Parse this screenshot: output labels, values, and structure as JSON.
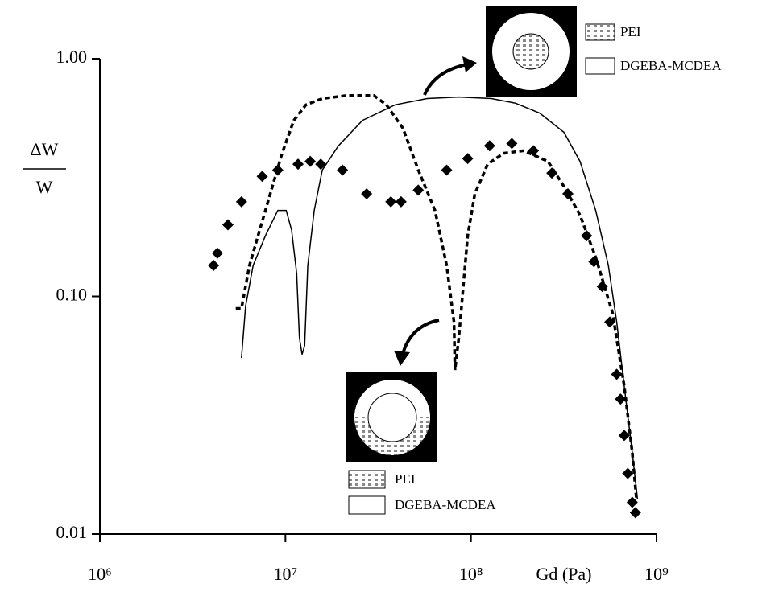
{
  "chart_data": {
    "type": "line",
    "xscale": "log",
    "yscale": "log",
    "xlim": [
      1000000,
      1000000000
    ],
    "ylim": [
      0.01,
      1
    ],
    "xticks": [
      {
        "value": 1000000,
        "label": "10⁶"
      },
      {
        "value": 10000000,
        "label": "10⁷"
      },
      {
        "value": 100000000,
        "label": "10⁸"
      },
      {
        "value": 1000000000,
        "label": "10⁹"
      }
    ],
    "yticks": [
      {
        "value": 1,
        "label": "1.00"
      },
      {
        "value": 0.1,
        "label": "0.10"
      },
      {
        "value": 0.01,
        "label": "0.01"
      }
    ],
    "xlabel": "Gd (Pa)",
    "ylabel": [
      "ΔW",
      "W"
    ],
    "series": [
      {
        "style": "diamond",
        "color": "#000000",
        "x": [
          4100000,
          4300000,
          4900000,
          5800000,
          7500000,
          9100000,
          11700000,
          13600000,
          15500000,
          20300000,
          27400000,
          37000000,
          42000000,
          52000000,
          74000000,
          96000000,
          126000000,
          166000000,
          217000000,
          273000000,
          333000000,
          420000000,
          460000000,
          510000000,
          560000000,
          610000000,
          640000000,
          670000000,
          700000000,
          740000000,
          770000000
        ],
        "values": [
          0.135,
          0.152,
          0.2,
          0.25,
          0.32,
          0.34,
          0.36,
          0.37,
          0.36,
          0.34,
          0.27,
          0.25,
          0.25,
          0.28,
          0.34,
          0.38,
          0.43,
          0.44,
          0.41,
          0.33,
          0.27,
          0.18,
          0.14,
          0.11,
          0.078,
          0.047,
          0.037,
          0.026,
          0.018,
          0.0136,
          0.0123
        ]
      },
      {
        "style": "dashed",
        "color": "#000000",
        "x": [
          5400000,
          5800000,
          6400000,
          7800000,
          9600000,
          11100000,
          12900000,
          15800000,
          21300000,
          30000000,
          35000000,
          43000000,
          52000000,
          64000000,
          74000000,
          81000000,
          82000000,
          86000000,
          96000000,
          105000000,
          123000000,
          150000000,
          192000000,
          260000000,
          317000000,
          387000000,
          470000000,
          580000000,
          670000000,
          740000000,
          780000000
        ],
        "values": [
          0.089,
          0.089,
          0.135,
          0.23,
          0.4,
          0.55,
          0.64,
          0.68,
          0.7,
          0.7,
          0.64,
          0.51,
          0.34,
          0.23,
          0.135,
          0.078,
          0.049,
          0.067,
          0.18,
          0.27,
          0.36,
          0.4,
          0.41,
          0.37,
          0.29,
          0.22,
          0.146,
          0.085,
          0.042,
          0.022,
          0.014
        ]
      },
      {
        "style": "solid",
        "color": "#000000",
        "x": [
          5800000,
          6100000,
          6700000,
          7800000,
          9100000,
          10100000,
          10800000,
          11500000,
          11900000,
          12300000,
          12700000,
          13200000,
          14300000,
          15800000,
          19300000,
          26000000,
          39000000,
          58000000,
          86000000,
          129000000,
          174000000,
          235000000,
          317000000,
          387000000,
          470000000,
          550000000,
          610000000,
          670000000,
          740000000,
          790000000
        ],
        "values": [
          0.055,
          0.091,
          0.135,
          0.18,
          0.23,
          0.23,
          0.19,
          0.125,
          0.067,
          0.057,
          0.062,
          0.135,
          0.23,
          0.34,
          0.43,
          0.55,
          0.64,
          0.68,
          0.69,
          0.68,
          0.65,
          0.59,
          0.49,
          0.37,
          0.23,
          0.135,
          0.078,
          0.042,
          0.022,
          0.014
        ]
      }
    ],
    "insets": [
      {
        "labels": [
          "PEI",
          "DGEBA-MCDEA"
        ]
      },
      {
        "labels": [
          "PEI",
          "DGEBA-MCDEA"
        ]
      }
    ]
  }
}
